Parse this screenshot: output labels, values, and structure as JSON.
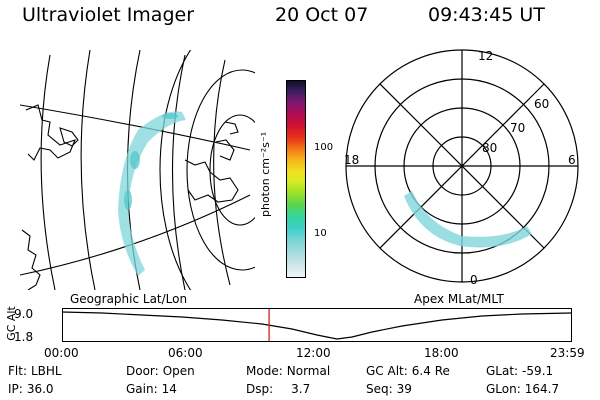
{
  "header": {
    "app_title": "Ultraviolet Imager",
    "date": "20 Oct 07",
    "time": "09:43:45 UT"
  },
  "colorbar": {
    "unit_label": "photon cm⁻²s⁻¹",
    "ticks": [
      "100",
      "10"
    ]
  },
  "polar": {
    "mlt_labels": {
      "top": "12",
      "bottom": "0",
      "left": "18",
      "right": "6"
    },
    "lat_labels": [
      "60",
      "70",
      "80"
    ]
  },
  "maps": {
    "geo_label": "Geographic Lat/Lon",
    "apex_label": "Apex MLat/MLT"
  },
  "altitude_strip": {
    "axis_label": "GC Alt",
    "y_ticks": [
      "9.0",
      "1.8"
    ],
    "x_ticks": [
      "00:00",
      "06:00",
      "12:00",
      "18:00",
      "23:59"
    ],
    "current_time_fraction": 0.4068
  },
  "footer": {
    "filter": {
      "label": "Flt:",
      "value": "LBHL"
    },
    "ip": {
      "label": "IP:",
      "value": "36.0"
    },
    "door": {
      "label": "Door:",
      "value": "Open"
    },
    "gain": {
      "label": "Gain:",
      "value": "14"
    },
    "mode": {
      "label": "Mode:",
      "value": "Normal"
    },
    "dsp": {
      "label": "Dsp:",
      "value": "3.7"
    },
    "gc_alt": {
      "label": "GC Alt:",
      "value": "6.4 Re"
    },
    "seq": {
      "label": "Seq:",
      "value": "39"
    },
    "glat": {
      "label": "GLat:",
      "value": "-59.1"
    },
    "glon": {
      "label": "GLon:",
      "value": "164.7"
    }
  },
  "colors": {
    "aurora": "#7fd6dc",
    "marker": "#cc2222"
  }
}
